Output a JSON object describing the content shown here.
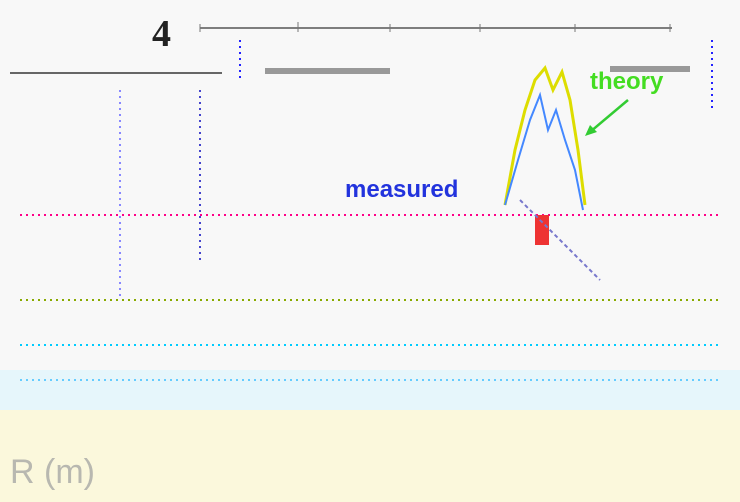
{
  "labels": {
    "top_number": "4",
    "measured": "measured",
    "theory": "theory",
    "axis": "R (m)"
  }
}
